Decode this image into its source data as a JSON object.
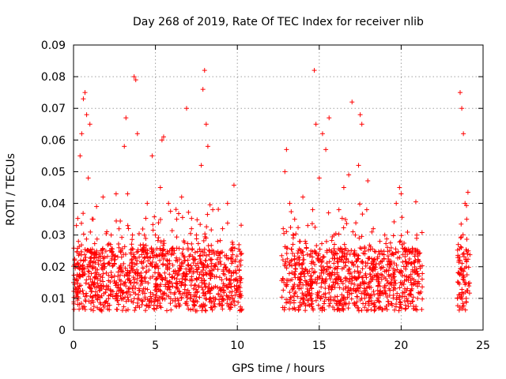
{
  "chart_data": {
    "type": "scatter",
    "title": "Day 268 of 2019, Rate Of TEC Index for receiver nlib",
    "xlabel": "GPS time / hours",
    "ylabel": "ROTI / TECUs",
    "xlim": [
      0,
      25
    ],
    "ylim": [
      0,
      0.09
    ],
    "xticks": [
      0,
      5,
      10,
      15,
      20,
      25
    ],
    "xtick_labels": [
      "0",
      "5",
      "10",
      "15",
      "20",
      "25"
    ],
    "yticks": [
      0,
      0.01,
      0.02,
      0.03,
      0.04,
      0.05,
      0.06,
      0.07,
      0.08,
      0.09
    ],
    "ytick_labels": [
      "0",
      "0.01",
      "0.02",
      "0.03",
      "0.04",
      "0.05",
      "0.06",
      "0.07",
      "0.08",
      "0.09"
    ],
    "grid": true,
    "marker": "+",
    "marker_color": "#ff0000",
    "series": [
      {
        "name": "ROTI",
        "points": [
          [
            0.0,
            0.015
          ],
          [
            0.2,
            0.012
          ],
          [
            0.3,
            0.028
          ],
          [
            0.4,
            0.055
          ],
          [
            0.5,
            0.062
          ],
          [
            0.6,
            0.073
          ],
          [
            0.7,
            0.075
          ],
          [
            0.8,
            0.068
          ],
          [
            0.9,
            0.048
          ],
          [
            1.0,
            0.065
          ],
          [
            1.2,
            0.035
          ],
          [
            1.5,
            0.022
          ],
          [
            1.8,
            0.042
          ],
          [
            2.0,
            0.018
          ],
          [
            2.3,
            0.03
          ],
          [
            2.6,
            0.043
          ],
          [
            2.9,
            0.025
          ],
          [
            3.1,
            0.058
          ],
          [
            3.2,
            0.067
          ],
          [
            3.3,
            0.043
          ],
          [
            3.6,
            0.03
          ],
          [
            3.7,
            0.08
          ],
          [
            3.8,
            0.079
          ],
          [
            3.9,
            0.062
          ],
          [
            4.2,
            0.025
          ],
          [
            4.5,
            0.04
          ],
          [
            4.8,
            0.055
          ],
          [
            5.0,
            0.03
          ],
          [
            5.3,
            0.045
          ],
          [
            5.4,
            0.06
          ],
          [
            5.5,
            0.061
          ],
          [
            5.8,
            0.04
          ],
          [
            6.0,
            0.025
          ],
          [
            6.3,
            0.035
          ],
          [
            6.6,
            0.042
          ],
          [
            6.9,
            0.07
          ],
          [
            7.2,
            0.032
          ],
          [
            7.5,
            0.03
          ],
          [
            7.8,
            0.052
          ],
          [
            7.9,
            0.076
          ],
          [
            8.0,
            0.082
          ],
          [
            8.1,
            0.065
          ],
          [
            8.2,
            0.058
          ],
          [
            8.5,
            0.038
          ],
          [
            8.8,
            0.028
          ],
          [
            9.1,
            0.032
          ],
          [
            9.4,
            0.04
          ],
          [
            9.7,
            0.025
          ],
          [
            10.0,
            0.02
          ],
          [
            10.2,
            0.015
          ],
          [
            12.8,
            0.032
          ],
          [
            12.9,
            0.05
          ],
          [
            13.0,
            0.057
          ],
          [
            13.2,
            0.04
          ],
          [
            13.5,
            0.035
          ],
          [
            13.8,
            0.028
          ],
          [
            14.0,
            0.042
          ],
          [
            14.3,
            0.033
          ],
          [
            14.6,
            0.038
          ],
          [
            14.7,
            0.082
          ],
          [
            14.8,
            0.065
          ],
          [
            15.0,
            0.048
          ],
          [
            15.2,
            0.062
          ],
          [
            15.4,
            0.057
          ],
          [
            15.6,
            0.067
          ],
          [
            15.9,
            0.03
          ],
          [
            16.2,
            0.038
          ],
          [
            16.5,
            0.045
          ],
          [
            16.8,
            0.049
          ],
          [
            17.0,
            0.072
          ],
          [
            17.2,
            0.03
          ],
          [
            17.4,
            0.052
          ],
          [
            17.5,
            0.068
          ],
          [
            17.6,
            0.065
          ],
          [
            17.9,
            0.038
          ],
          [
            18.3,
            0.032
          ],
          [
            18.7,
            0.028
          ],
          [
            19.0,
            0.03
          ],
          [
            19.3,
            0.025
          ],
          [
            19.7,
            0.04
          ],
          [
            19.9,
            0.045
          ],
          [
            20.0,
            0.043
          ],
          [
            20.3,
            0.02
          ],
          [
            20.6,
            0.015
          ],
          [
            21.0,
            0.01
          ],
          [
            21.2,
            0.012
          ],
          [
            23.5,
            0.015
          ],
          [
            23.6,
            0.075
          ],
          [
            23.7,
            0.07
          ],
          [
            23.8,
            0.062
          ],
          [
            23.9,
            0.04
          ],
          [
            24.0,
            0.035
          ],
          [
            24.1,
            0.025
          ]
        ]
      }
    ],
    "gaps_hours": [
      [
        10.3,
        12.7
      ],
      [
        21.3,
        23.4
      ]
    ]
  }
}
